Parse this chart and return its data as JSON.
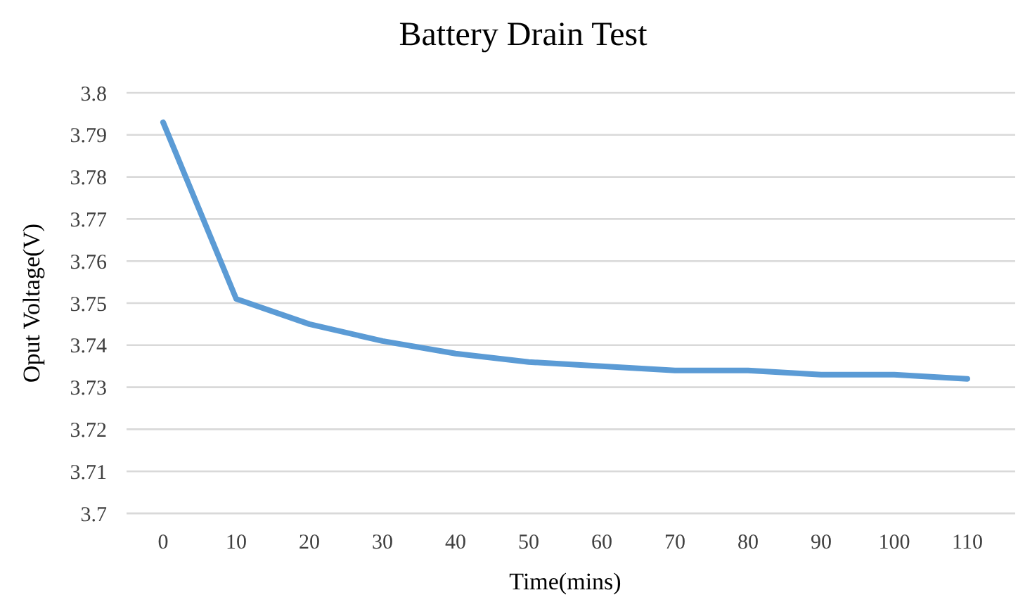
{
  "chart_data": {
    "type": "line",
    "title": "Battery Drain Test",
    "xlabel": "Time(mins)",
    "ylabel": "Oput Voltage(V)",
    "categories": [
      "0",
      "10",
      "20",
      "30",
      "40",
      "50",
      "60",
      "70",
      "80",
      "90",
      "100",
      "110"
    ],
    "series": [
      {
        "color": "#5b9bd5",
        "values": [
          3.793,
          3.751,
          3.745,
          3.741,
          3.738,
          3.736,
          3.735,
          3.734,
          3.734,
          3.733,
          3.733,
          3.732
        ]
      }
    ],
    "ylim": [
      3.7,
      3.8
    ],
    "yticks": [
      3.7,
      3.71,
      3.72,
      3.73,
      3.74,
      3.75,
      3.76,
      3.77,
      3.78,
      3.79,
      3.8
    ],
    "grid": "y",
    "marker": "none",
    "line_style": "solid"
  }
}
